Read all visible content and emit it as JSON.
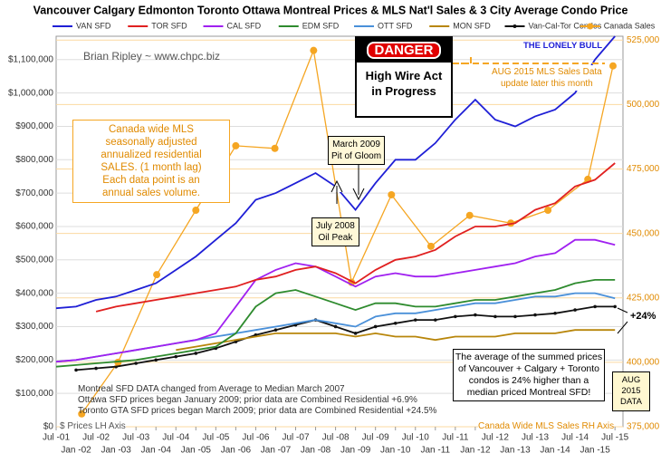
{
  "chart_data": {
    "type": "line",
    "title": "Vancouver Calgary Edmonton Toronto Ottawa Montreal Prices & MLS Nat'l Sales & 3 City Average Condo Price",
    "x": [
      2001.5,
      2002,
      2002.5,
      2003,
      2003.5,
      2004,
      2004.5,
      2005,
      2005.5,
      2006,
      2006.5,
      2007,
      2007.5,
      2008,
      2008.5,
      2009,
      2009.5,
      2010,
      2010.5,
      2011,
      2011.5,
      2012,
      2012.5,
      2013,
      2013.5,
      2014,
      2014.5,
      2015,
      2015.5
    ],
    "xlim": [
      2001.5,
      2015.7
    ],
    "xticks": [
      {
        "value": 2001.5,
        "label": "Jul -01"
      },
      {
        "value": 2002,
        "label": "Jan -02"
      },
      {
        "value": 2002.5,
        "label": "Jul -02"
      },
      {
        "value": 2003,
        "label": "Jan -03"
      },
      {
        "value": 2003.5,
        "label": "Jul -03"
      },
      {
        "value": 2004,
        "label": "Jan -04"
      },
      {
        "value": 2004.5,
        "label": "Jul -04"
      },
      {
        "value": 2005,
        "label": "Jan -05"
      },
      {
        "value": 2005.5,
        "label": "Jul -05"
      },
      {
        "value": 2006,
        "label": "Jan -06"
      },
      {
        "value": 2006.5,
        "label": "Jul -06"
      },
      {
        "value": 2007,
        "label": "Jan -07"
      },
      {
        "value": 2007.5,
        "label": "Jul -07"
      },
      {
        "value": 2008,
        "label": "Jan -08"
      },
      {
        "value": 2008.5,
        "label": "Jul -08"
      },
      {
        "value": 2009,
        "label": "Jan -09"
      },
      {
        "value": 2009.5,
        "label": "Jul -09"
      },
      {
        "value": 2010,
        "label": "Jan -10"
      },
      {
        "value": 2010.5,
        "label": "Jul -10"
      },
      {
        "value": 2011,
        "label": "Jan -11"
      },
      {
        "value": 2011.5,
        "label": "Jul -11"
      },
      {
        "value": 2012,
        "label": "Jan -12"
      },
      {
        "value": 2012.5,
        "label": "Jul -12"
      },
      {
        "value": 2013,
        "label": "Jan -13"
      },
      {
        "value": 2013.5,
        "label": "Jul -13"
      },
      {
        "value": 2014,
        "label": "Jan -14"
      },
      {
        "value": 2014.5,
        "label": "Jul -14"
      },
      {
        "value": 2015,
        "label": "Jan -15"
      },
      {
        "value": 2015.5,
        "label": "Jul -15"
      }
    ],
    "ylim": [
      0,
      1170000
    ],
    "yticks": [
      {
        "value": 0,
        "label": "$0"
      },
      {
        "value": 100000,
        "label": "$100,000"
      },
      {
        "value": 200000,
        "label": "$200,000"
      },
      {
        "value": 300000,
        "label": "$300,000"
      },
      {
        "value": 400000,
        "label": "$400,000"
      },
      {
        "value": 500000,
        "label": "$500,000"
      },
      {
        "value": 600000,
        "label": "$600,000"
      },
      {
        "value": 700000,
        "label": "$700,000"
      },
      {
        "value": 800000,
        "label": "$800,000"
      },
      {
        "value": 900000,
        "label": "$900,000"
      },
      {
        "value": 1000000,
        "label": "$1,000,000"
      },
      {
        "value": 1100000,
        "label": "$1,100,000"
      }
    ],
    "y2lim": [
      375000,
      526500
    ],
    "y2ticks": [
      {
        "value": 375000,
        "label": "375,000"
      },
      {
        "value": 400000,
        "label": "400,000"
      },
      {
        "value": 425000,
        "label": "425,000"
      },
      {
        "value": 450000,
        "label": "450,000"
      },
      {
        "value": 475000,
        "label": "475,000"
      },
      {
        "value": 500000,
        "label": "500,000"
      },
      {
        "value": 525000,
        "label": "525,000"
      }
    ],
    "grid": true,
    "series": [
      {
        "name": "VAN SFD",
        "color": "#1f1fd6",
        "values": [
          355000,
          360000,
          380000,
          390000,
          410000,
          430000,
          470000,
          510000,
          560000,
          610000,
          680000,
          700000,
          730000,
          760000,
          720000,
          650000,
          730000,
          800000,
          800000,
          850000,
          920000,
          980000,
          920000,
          900000,
          930000,
          950000,
          1000000,
          1100000,
          1170000
        ]
      },
      {
        "name": "TOR SFD",
        "color": "#e02020",
        "values": [
          null,
          null,
          345000,
          360000,
          370000,
          380000,
          390000,
          400000,
          410000,
          420000,
          440000,
          450000,
          470000,
          480000,
          460000,
          430000,
          470000,
          500000,
          510000,
          530000,
          570000,
          600000,
          600000,
          610000,
          650000,
          670000,
          720000,
          740000,
          790000
        ]
      },
      {
        "name": "CAL SFD",
        "color": "#a020f0",
        "values": [
          195000,
          200000,
          210000,
          220000,
          230000,
          240000,
          250000,
          260000,
          280000,
          360000,
          440000,
          470000,
          490000,
          480000,
          450000,
          420000,
          450000,
          460000,
          450000,
          450000,
          460000,
          470000,
          480000,
          490000,
          510000,
          520000,
          560000,
          560000,
          545000
        ]
      },
      {
        "name": "EDM SFD",
        "color": "#2e8b2e",
        "values": [
          180000,
          185000,
          190000,
          195000,
          200000,
          210000,
          220000,
          230000,
          240000,
          280000,
          360000,
          400000,
          410000,
          390000,
          370000,
          350000,
          370000,
          370000,
          360000,
          360000,
          370000,
          380000,
          380000,
          390000,
          400000,
          410000,
          430000,
          440000,
          440000
        ]
      },
      {
        "name": "OTT SFD",
        "color": "#4a90d9",
        "values": [
          195000,
          200000,
          210000,
          220000,
          230000,
          240000,
          250000,
          260000,
          270000,
          280000,
          290000,
          300000,
          310000,
          320000,
          310000,
          300000,
          330000,
          340000,
          340000,
          350000,
          360000,
          370000,
          370000,
          380000,
          390000,
          390000,
          400000,
          400000,
          385000
        ]
      },
      {
        "name": "MON SFD",
        "color": "#b8860b",
        "values": [
          null,
          null,
          null,
          null,
          null,
          null,
          230000,
          240000,
          250000,
          260000,
          270000,
          280000,
          280000,
          280000,
          280000,
          270000,
          280000,
          270000,
          270000,
          260000,
          270000,
          270000,
          270000,
          280000,
          280000,
          280000,
          290000,
          290000,
          290000
        ]
      },
      {
        "name": "Van-Cal-Tor Condos",
        "color": "#111111",
        "values": [
          null,
          170000,
          175000,
          180000,
          190000,
          200000,
          210000,
          220000,
          235000,
          255000,
          275000,
          290000,
          305000,
          320000,
          300000,
          280000,
          300000,
          310000,
          320000,
          320000,
          330000,
          335000,
          330000,
          330000,
          335000,
          340000,
          350000,
          360000,
          360000
        ]
      },
      {
        "name": "Canada Sales",
        "color": "#f5a623",
        "axis": "y2",
        "x": [
          2002.14,
          2003.05,
          2004.02,
          2005,
          2006,
          2006.98,
          2007.95,
          2008.9,
          2009.9,
          2010.89,
          2011.86,
          2012.89,
          2013.82,
          2014.82,
          2015.45
        ],
        "values": [
          380000,
          400000,
          434000,
          459000,
          484000,
          483000,
          521000,
          431000,
          465000,
          445000,
          457000,
          454000,
          459000,
          471000,
          515000
        ]
      }
    ],
    "annotations": {
      "author": "Brian Ripley ~ www.chpc.biz",
      "danger": [
        "DANGER",
        "High Wire Act",
        "in Progress"
      ],
      "bull": "THE LONELY BULL",
      "update": [
        "AUG 2015 MLS Sales Data",
        "update later this month"
      ],
      "sales_note": [
        "Canada wide MLS",
        "seasonally adjusted",
        "annualized residential",
        "SALES. (1 month lag)",
        "Each data point is an",
        "annual sales volume."
      ],
      "gloom": [
        "March 2009",
        "Pit of Gloom"
      ],
      "oil": [
        "July 2008",
        "Oil Peak"
      ],
      "data_notes": [
        "Montreal SFD DATA changed from Average to Median March 2007",
        "Ottawa SFD prices began January 2009; prior data are Combined Residential +6.9%",
        "Toronto GTA SFD prices began March 2009; prior data are Combined Residential +24.5%"
      ],
      "gap": "+24%",
      "condo_note": [
        "The average of the summed prices",
        "of Vancouver + Calgary + Toronto",
        "condos is 24% higher than a",
        "median priced Montreal SFD!"
      ],
      "aug_data": [
        "AUG",
        "2015",
        "DATA"
      ],
      "left_axis": "$ Prices LH Axis",
      "right_axis": "Canada Wide MLS Sales RH Axis"
    }
  }
}
